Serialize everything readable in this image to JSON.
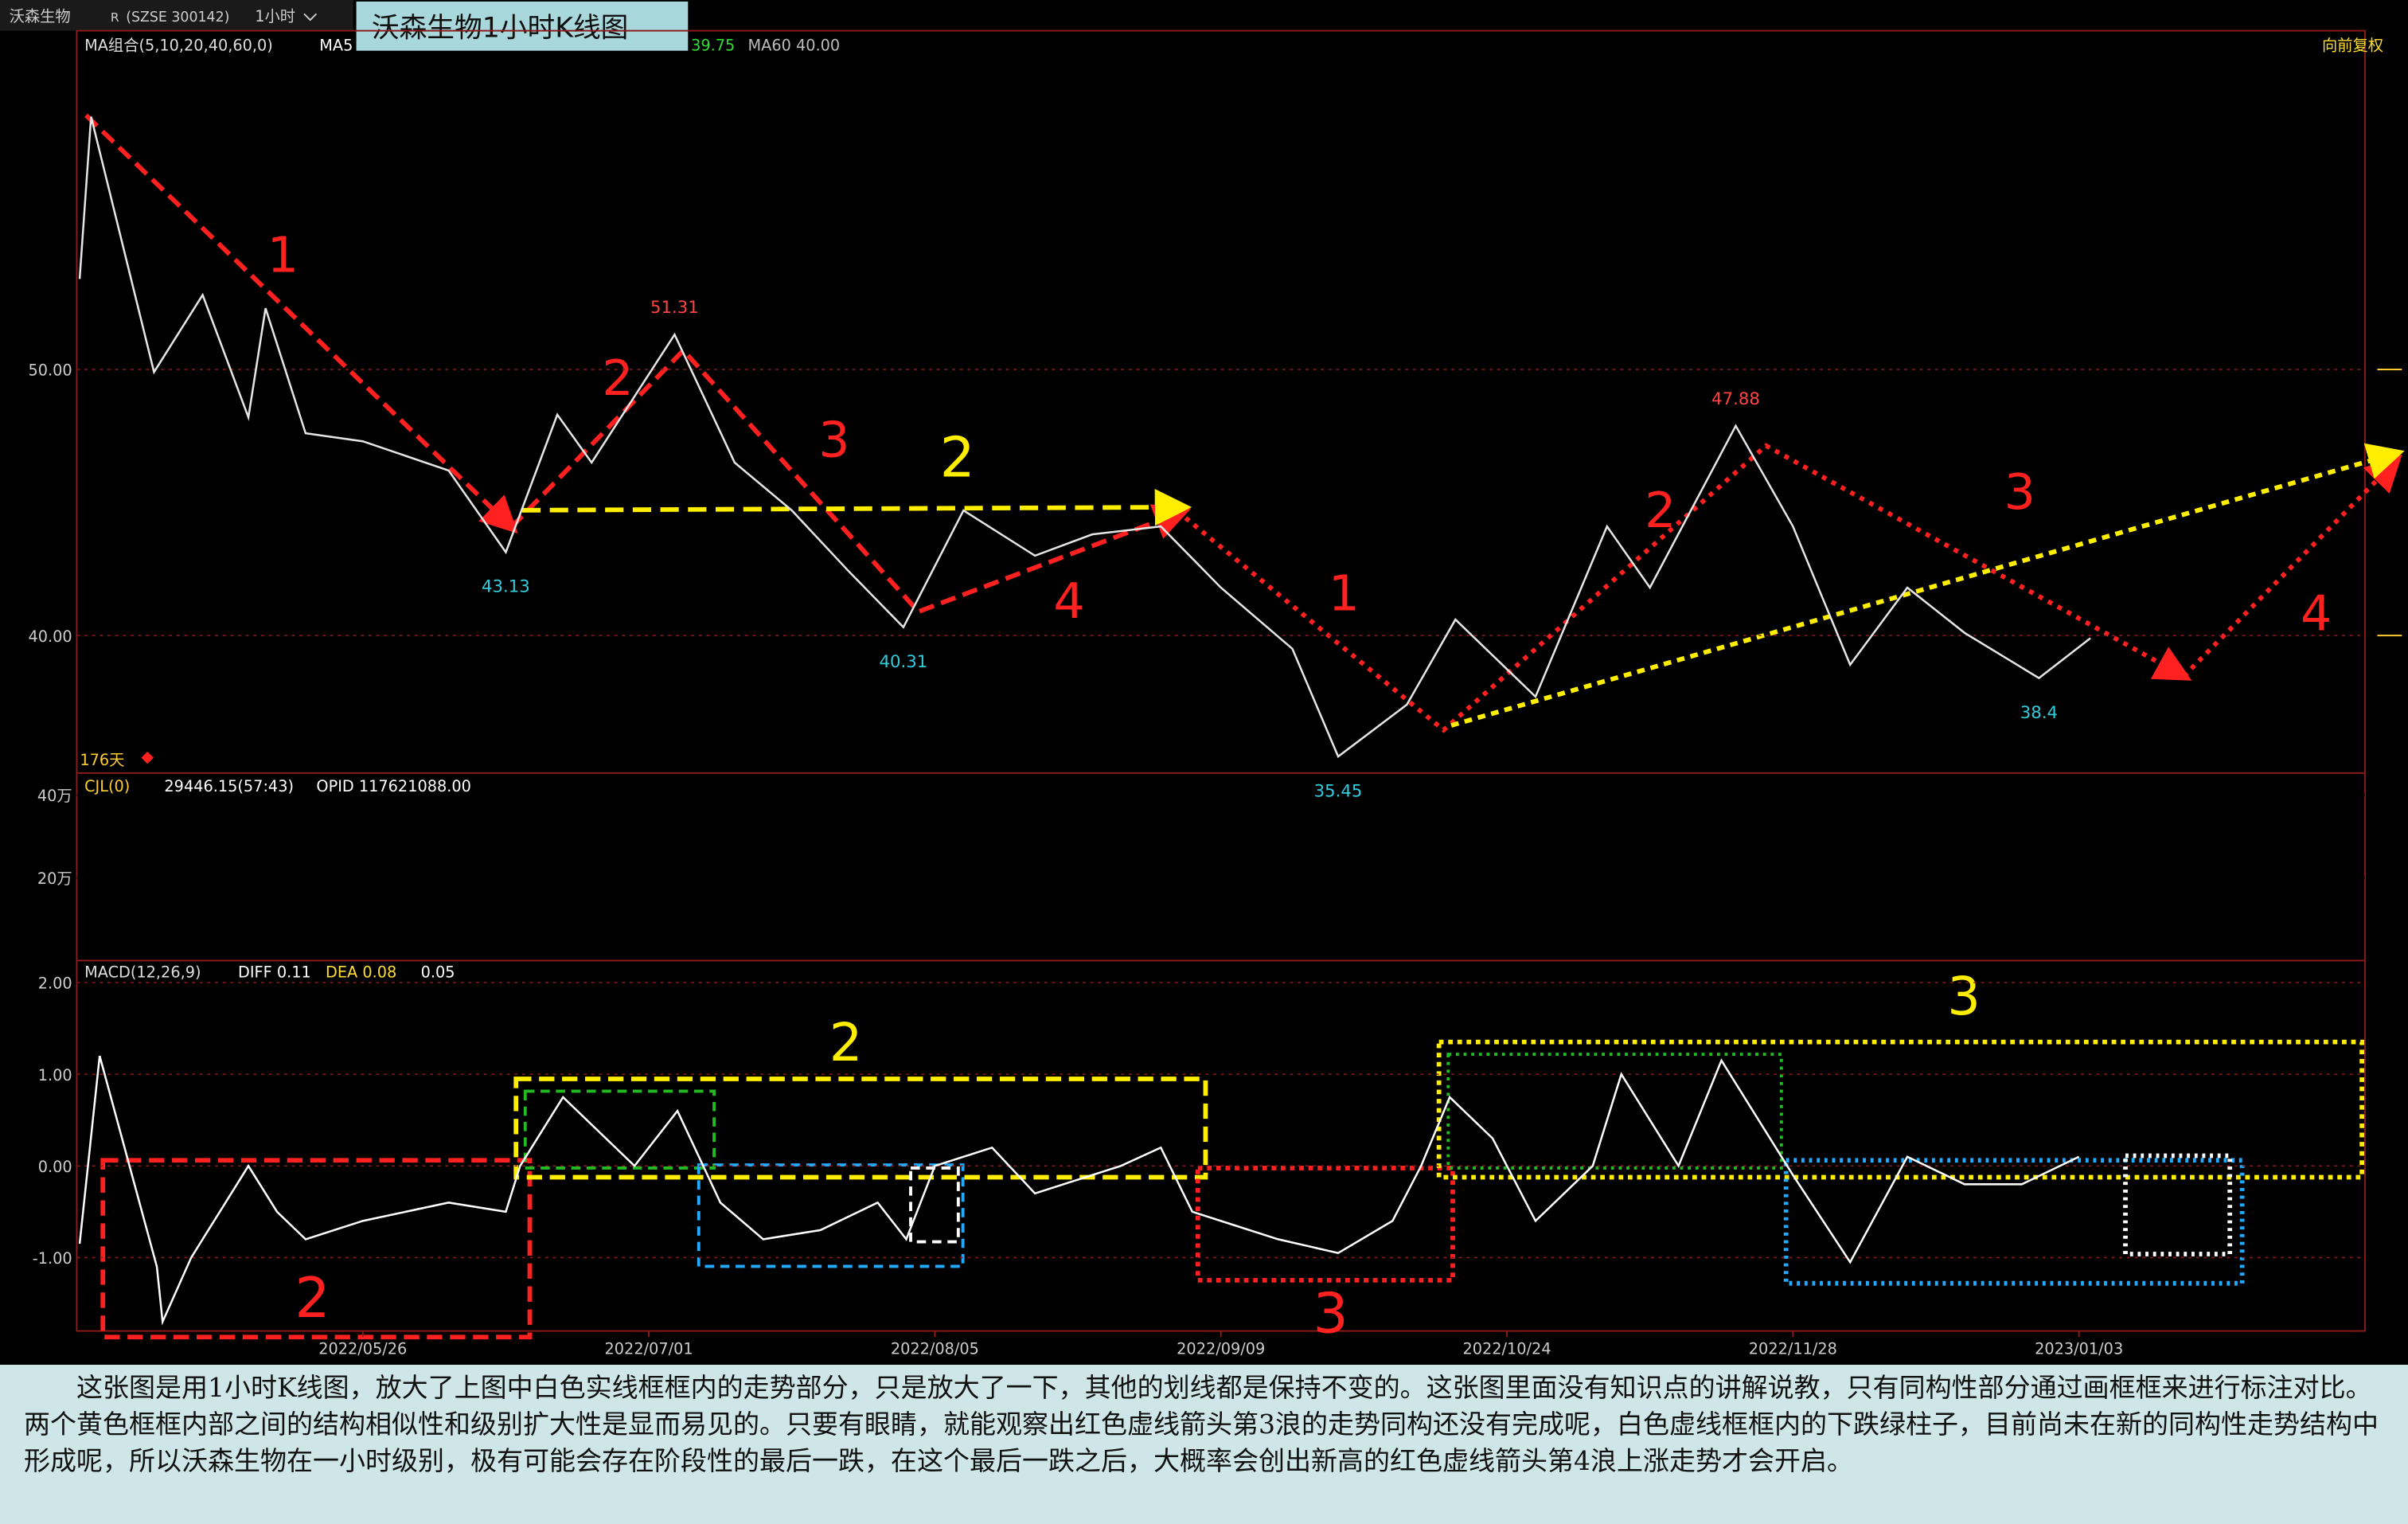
{
  "toolbar": {
    "stock": "沃森生物",
    "flag": "R",
    "code": "(SZSE 300142)",
    "period": "1小时"
  },
  "title": "沃森生物1小时K线图",
  "price_chart": {
    "type": "line",
    "indicator": "MA组合(5,10,20,40,60,0)",
    "ma5_label": "MA5",
    "ma_value": "39.75",
    "ma60": "MA60 40.00",
    "adjust": "向前复权",
    "days": "176天",
    "color": "#e6e6e6",
    "x": [
      1,
      5,
      27,
      44,
      60,
      66,
      80,
      100,
      130,
      150,
      168,
      180,
      209,
      230,
      250,
      270,
      289,
      310,
      335,
      355,
      379,
      400,
      425,
      441,
      465,
      482,
      510,
      535,
      550,
      580,
      600,
      620,
      640,
      660,
      686,
      704
    ],
    "values": [
      53.4,
      59.5,
      49.9,
      52.8,
      48.2,
      52.3,
      47.6,
      47.3,
      46.2,
      43.13,
      48.3,
      46.5,
      51.31,
      46.5,
      44.7,
      42.4,
      40.31,
      44.7,
      43.0,
      43.8,
      44.1,
      41.8,
      39.5,
      35.45,
      37.4,
      40.6,
      37.7,
      44.1,
      41.8,
      47.88,
      44.1,
      38.9,
      41.8,
      40.1,
      38.4,
      39.9
    ],
    "extreme_labels": [
      {
        "x": 150,
        "value": 43.13,
        "color": "#33ccdd",
        "side": "below"
      },
      {
        "x": 209,
        "value": 51.31,
        "color": "#ff4444",
        "side": "above"
      },
      {
        "x": 289,
        "value": 40.31,
        "color": "#33ccdd",
        "side": "below"
      },
      {
        "x": 441,
        "value": 35.45,
        "color": "#33ccdd",
        "side": "below"
      },
      {
        "x": 580,
        "value": 47.88,
        "color": "#ff4444",
        "side": "above"
      },
      {
        "x": 686,
        "value": 38.4,
        "color": "#33ccdd",
        "side": "below"
      }
    ],
    "xlim": [
      0,
      800
    ],
    "ylim": [
      34.83,
      62.73
    ],
    "yticks": [
      {
        "value": 40,
        "label": "40.00"
      },
      {
        "value": 50,
        "label": "50.00"
      }
    ],
    "xticks": [
      {
        "value": 100,
        "label": "2022/05/26"
      },
      {
        "value": 200,
        "label": "2022/07/01"
      },
      {
        "value": 300,
        "label": "2022/08/05"
      },
      {
        "value": 400,
        "label": "2022/09/09"
      },
      {
        "value": 500,
        "label": "2022/10/24"
      },
      {
        "value": 600,
        "label": "2022/11/28"
      },
      {
        "value": 700,
        "label": "2023/01/03"
      }
    ]
  },
  "volume": {
    "label": "CJL(0)",
    "stat": "29446.15(57:43)",
    "opid": "OPID 117621088.00",
    "ylim": [
      0,
      453000
    ],
    "yticks": [
      {
        "value": 200000,
        "label": "20万"
      },
      {
        "value": 400000,
        "label": "40万"
      }
    ]
  },
  "macd": {
    "type": "line",
    "label": "MACD(12,26,9)",
    "diff": "DIFF 0.11",
    "dea": "DEA 0.08",
    "macd": "0.05",
    "color": "#ffffff",
    "x": [
      1,
      8,
      28,
      30,
      40,
      60,
      70,
      80,
      100,
      130,
      150,
      155,
      170,
      195,
      210,
      225,
      240,
      260,
      280,
      290,
      300,
      320,
      335,
      365,
      379,
      390,
      420,
      441,
      460,
      470,
      480,
      495,
      510,
      530,
      540,
      560,
      575,
      600,
      620,
      640,
      660,
      680,
      700
    ],
    "values": [
      -0.85,
      1.2,
      -1.1,
      -1.7,
      -1.0,
      0.0,
      -0.5,
      -0.8,
      -0.6,
      -0.4,
      -0.5,
      0.0,
      0.75,
      0.0,
      0.6,
      -0.4,
      -0.8,
      -0.7,
      -0.4,
      -0.8,
      0.0,
      0.2,
      -0.3,
      0.0,
      0.2,
      -0.5,
      -0.8,
      -0.95,
      -0.6,
      0.0,
      0.75,
      0.3,
      -0.6,
      0.0,
      1.0,
      0.0,
      1.15,
      -0.1,
      -1.05,
      0.1,
      -0.2,
      -0.2,
      0.1
    ],
    "ylim": [
      -1.8,
      2.24
    ],
    "yticks": [
      {
        "value": 2,
        "label": "2.00"
      },
      {
        "value": 1,
        "label": "1.00"
      },
      {
        "value": 0,
        "label": "0.00"
      },
      {
        "value": -1,
        "label": "-1.00"
      }
    ]
  },
  "annotations": {
    "price": [
      "1",
      "2",
      "3",
      "2",
      "4",
      "1",
      "2",
      "3",
      "4"
    ],
    "macd": [
      "2",
      "2",
      "3",
      "3"
    ]
  },
  "description": "这张图是用1小时K线图，放大了上图中白色实线框框内的走势部分，只是放大了一下，其他的划线都是保持不变的。这张图里面没有知识点的讲解说教，只有同构性部分通过画框框来进行标注对比。两个黄色框框内部之间的结构相似性和级别扩大性是显而易见的。只要有眼睛，就能观察出红色虚线箭头第3浪的走势同构还没有完成呢，白色虚线框框内的下跌绿柱子，目前尚未在新的同构性走势结构中形成呢，所以沃森生物在一小时级别，极有可能会存在阶段性的最后一跌，在这个最后一跌之后，大概率会创出新高的红色虚线箭头第4浪上涨走势才会开启。"
}
